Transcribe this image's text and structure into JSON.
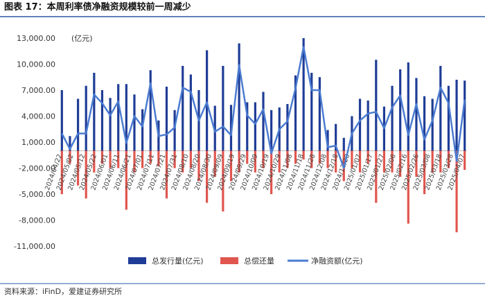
{
  "title": "图表 17：本周利率债净融资规模较前一周减少",
  "source": "资料来源：iFinD，爱建证券研究所",
  "chart_data": {
    "type": "bar",
    "unit_label": "(亿元)",
    "x": [
      "2024/04/22",
      "2024/04/29",
      "2024/05/06",
      "2024/05/13",
      "2024/05/20",
      "2024/05/27",
      "2024/06/03",
      "2024/06/10",
      "2024/06/17",
      "2024/06/24",
      "2024/07/01",
      "2024/07/08",
      "2024/07/15",
      "2024/07/22",
      "2024/07/29",
      "2024/08/05",
      "2024/08/12",
      "2024/08/19",
      "2024/08/26",
      "2024/09/02",
      "2024/09/09",
      "2024/09/16",
      "2024/09/23",
      "2024/09/30",
      "2024/10/07",
      "2024/10/14",
      "2024/10/21",
      "2024/10/28",
      "2024/11/04",
      "2024/11/11",
      "2024/11/18",
      "2024/11/25",
      "2024/12/02",
      "2024/12/09",
      "2024/12/16",
      "2024/12/23",
      "2024/12/30",
      "2025/01/06",
      "2025/01/13",
      "2025/01/20",
      "2025/01/27",
      "2025/02/03",
      "2025/02/10",
      "2025/02/17",
      "2025/02/24",
      "2025/03/03",
      "2025/03/10",
      "2025/03/17",
      "2025/03/24",
      "2025/03/31",
      "2025/04/07"
    ],
    "xlim": [
      "2024/04/20",
      "2025/04/09"
    ],
    "xticks": [
      "2024/04/22",
      "2024/05/02",
      "2024/05/12",
      "2024/05/22",
      "2024/06/01",
      "2024/06/11",
      "2024/06/21",
      "2024/07/01",
      "2024/07/11",
      "2024/07/21",
      "2024/07/31",
      "2024/08/10",
      "2024/08/20",
      "2024/08/30",
      "2024/09/09",
      "2024/09/19",
      "2024/09/29",
      "2024/10/09",
      "2024/10/19",
      "2024/10/29",
      "2024/11/08",
      "2024/11/18",
      "2024/11/28",
      "2024/12/08",
      "2024/12/18",
      "2024/12/28",
      "2025/01/07",
      "2025/01/17",
      "2025/01/27",
      "2025/02/06",
      "2025/02/16",
      "2025/02/26",
      "2025/03/08",
      "2025/03/18",
      "2025/03/28",
      "2025/04/07"
    ],
    "ylim": [
      -11000,
      13000
    ],
    "yticks": [
      {
        "value": 13000,
        "label": "13,000.00"
      },
      {
        "value": 10000,
        "label": "10,000.00"
      },
      {
        "value": 7000,
        "label": "7,000.00"
      },
      {
        "value": 4000,
        "label": "4,000.00"
      },
      {
        "value": 1000,
        "label": "1,000.00"
      },
      {
        "value": -2000,
        "label": "-2,000.00"
      },
      {
        "value": -5000,
        "label": "-5,000.00"
      },
      {
        "value": -8000,
        "label": "-8,000.00"
      },
      {
        "value": -11000,
        "label": "-11,000.00"
      }
    ],
    "grid": false,
    "series": [
      {
        "name": "总发行量(亿元)",
        "type": "bar",
        "color": "#1f3d96",
        "values": [
          7000,
          1700,
          6000,
          7500,
          9000,
          7000,
          6100,
          7700,
          7700,
          6500,
          4800,
          9300,
          3500,
          7400,
          4700,
          9800,
          8800,
          7000,
          11600,
          5200,
          9800,
          5300,
          12400,
          5600,
          5600,
          6800,
          4700,
          5000,
          5400,
          8700,
          13000,
          9000,
          8500,
          2400,
          3100,
          1500,
          4000,
          6000,
          5800,
          10500,
          5100,
          7500,
          9400,
          10200,
          8400,
          6300,
          6000,
          9800,
          7500,
          8200,
          8100
        ]
      },
      {
        "name": "总偿还量",
        "type": "bar",
        "color": "#e0564e",
        "values": [
          -5000,
          -1500,
          -4000,
          -5500,
          -2500,
          -1500,
          -2000,
          -2000,
          -6800,
          -2500,
          -2000,
          -1500,
          -1800,
          -5500,
          -2000,
          -2500,
          -2000,
          -3500,
          -6000,
          -3000,
          -7000,
          -3500,
          -2500,
          -1500,
          -2500,
          -2000,
          -5000,
          -2500,
          -2000,
          -1500,
          -1000,
          -2000,
          -1500,
          -2000,
          -2500,
          -3500,
          -2000,
          -2500,
          -1500,
          -6000,
          -2500,
          -2500,
          -3000,
          -8400,
          -3000,
          -5000,
          -2500,
          -2500,
          -2000,
          -9400,
          -2200
        ]
      },
      {
        "name": "净融资额(亿元)",
        "type": "line",
        "color": "#4a7bd1",
        "values": [
          2000,
          200,
          2000,
          2000,
          6500,
          5500,
          4100,
          5700,
          900,
          4000,
          2800,
          7800,
          1700,
          1900,
          2700,
          7300,
          6800,
          3500,
          5600,
          2200,
          2800,
          1800,
          9900,
          4100,
          3100,
          4800,
          -300,
          2500,
          3400,
          7200,
          12000,
          7000,
          7000,
          400,
          600,
          -2000,
          2000,
          3500,
          4300,
          4500,
          2600,
          5000,
          6400,
          1800,
          5400,
          1300,
          3500,
          7300,
          5500,
          -1200,
          5900
        ]
      }
    ]
  }
}
